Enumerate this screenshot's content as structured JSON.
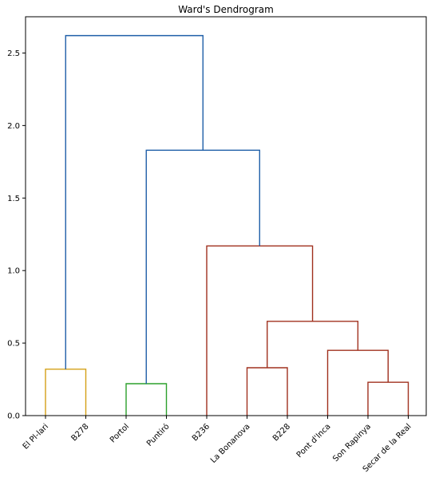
{
  "chart_data": {
    "type": "dendrogram",
    "title": "Ward's Dendrogram",
    "xlabel": "",
    "ylabel": "",
    "ylim": [
      0,
      2.75
    ],
    "yticks": [
      0.0,
      0.5,
      1.0,
      1.5,
      2.0,
      2.5
    ],
    "ytick_labels": [
      "0.0",
      "0.5",
      "1.0",
      "1.5",
      "2.0",
      "2.5"
    ],
    "grid": false,
    "leaves": [
      "El Pl-lari",
      "B278",
      "Portol",
      "Puntiró",
      "B236",
      "La Bonanova",
      "B228",
      "Pont d'Inca",
      "Son Rapinya",
      "Secar de la Real"
    ],
    "colors": {
      "orange_cluster": "#d4a017",
      "green_cluster": "#2ca02c",
      "red_cluster": "#a0301e",
      "above_threshold": "#1f5fa8",
      "axes": "#000000"
    },
    "links": [
      {
        "x": [
          0,
          1
        ],
        "height": 0.32,
        "color": "orange_cluster"
      },
      {
        "x": [
          2,
          3
        ],
        "height": 0.22,
        "color": "green_cluster"
      },
      {
        "x": [
          8,
          9
        ],
        "height": 0.23,
        "color": "red_cluster"
      },
      {
        "x": [
          5,
          6
        ],
        "height": 0.33,
        "color": "red_cluster"
      },
      {
        "x": [
          7,
          8.5
        ],
        "height": 0.45,
        "color": "red_cluster"
      },
      {
        "x": [
          5.5,
          7.75
        ],
        "height": 0.65,
        "color": "red_cluster"
      },
      {
        "x": [
          4,
          6.625
        ],
        "height": 1.17,
        "color": "red_cluster"
      },
      {
        "x": [
          2.5,
          5.3125
        ],
        "height": 1.83,
        "color": "above_threshold"
      },
      {
        "x": [
          0.5,
          3.90625
        ],
        "height": 2.62,
        "color": "above_threshold"
      }
    ]
  }
}
